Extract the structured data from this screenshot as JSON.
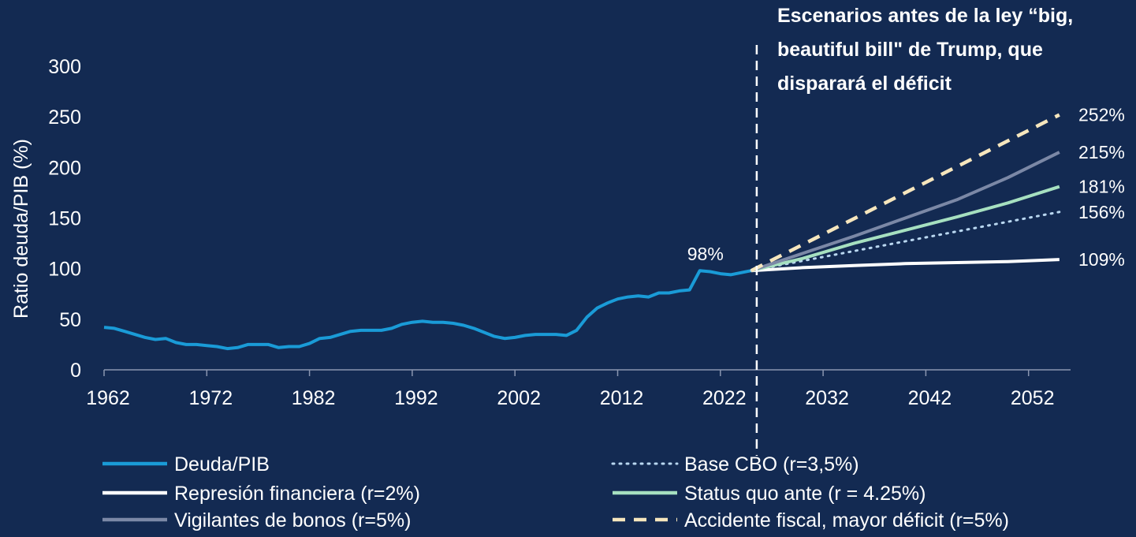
{
  "chart_data": {
    "type": "line",
    "title": "",
    "xlabel": "",
    "ylabel": "Ratio deuda/PIB (%)",
    "ylim": [
      0,
      300
    ],
    "xlim": [
      1962,
      2055
    ],
    "x_ticks": [
      1962,
      1972,
      1982,
      1992,
      2002,
      2012,
      2022,
      2032,
      2042,
      2052
    ],
    "y_ticks": [
      0,
      50,
      100,
      150,
      200,
      250,
      300
    ],
    "grid": false,
    "divider_year": 2025,
    "annotation": "Escenarios antes de la ley “big, beautiful bill\" de Trump, que disparará el déficit",
    "annotation_lines": [
      "Escenarios antes de la ley “big,",
      "beautiful bill\" de Trump, que",
      "disparará el déficit"
    ],
    "point_label": {
      "text": "98%",
      "x": 2022,
      "y": 98
    },
    "legend_position": "bottom",
    "series": [
      {
        "name": "Deuda/PIB",
        "style": "solid",
        "color": "#1a9bd7",
        "x": [
          1962,
          1963,
          1964,
          1965,
          1966,
          1967,
          1968,
          1969,
          1970,
          1971,
          1972,
          1973,
          1974,
          1975,
          1976,
          1977,
          1978,
          1979,
          1980,
          1981,
          1982,
          1983,
          1984,
          1985,
          1986,
          1987,
          1988,
          1989,
          1990,
          1991,
          1992,
          1993,
          1994,
          1995,
          1996,
          1997,
          1998,
          1999,
          2000,
          2001,
          2002,
          2003,
          2004,
          2005,
          2006,
          2007,
          2008,
          2009,
          2010,
          2011,
          2012,
          2013,
          2014,
          2015,
          2016,
          2017,
          2018,
          2019,
          2020,
          2021,
          2022,
          2023,
          2024,
          2025
        ],
        "y": [
          42,
          41,
          38,
          35,
          32,
          30,
          31,
          27,
          25,
          25,
          24,
          23,
          21,
          22,
          25,
          25,
          25,
          22,
          23,
          23,
          26,
          31,
          32,
          35,
          38,
          39,
          39,
          39,
          41,
          45,
          47,
          48,
          47,
          47,
          46,
          44,
          41,
          37,
          33,
          31,
          32,
          34,
          35,
          35,
          35,
          34,
          39,
          52,
          61,
          66,
          70,
          72,
          73,
          72,
          76,
          76,
          78,
          79,
          98,
          97,
          95,
          94,
          96,
          98
        ]
      },
      {
        "name": "Base CBO (r=3,5%)",
        "style": "dotted",
        "color": "#b9d7f0",
        "x": [
          2025,
          2055
        ],
        "y": [
          98,
          156
        ]
      },
      {
        "name": "Represión financiera (r=2%)",
        "style": "solid",
        "color": "#ffffff",
        "x": [
          2025,
          2030,
          2035,
          2040,
          2045,
          2050,
          2055
        ],
        "y": [
          98,
          101,
          103,
          105,
          106,
          107,
          109
        ]
      },
      {
        "name": "Status quo ante (r = 4.25%)",
        "style": "solid",
        "color": "#a6e0c0",
        "x": [
          2025,
          2030,
          2035,
          2040,
          2045,
          2050,
          2055
        ],
        "y": [
          98,
          110,
          125,
          138,
          151,
          165,
          181
        ]
      },
      {
        "name": "Vigilantes de bonos (r=5%)",
        "style": "solid",
        "color": "#7b88a6",
        "x": [
          2025,
          2030,
          2035,
          2040,
          2045,
          2050,
          2055
        ],
        "y": [
          98,
          115,
          132,
          150,
          168,
          190,
          215
        ]
      },
      {
        "name": "Accidente fiscal, mayor déficit (r=5%)",
        "style": "dashed",
        "color": "#f6e6bd",
        "x": [
          2025,
          2055
        ],
        "y": [
          98,
          252
        ]
      }
    ],
    "end_labels": [
      {
        "text": "252%",
        "value": 252
      },
      {
        "text": "215%",
        "value": 215
      },
      {
        "text": "181%",
        "value": 181
      },
      {
        "text": "156%",
        "value": 156
      },
      {
        "text": "109%",
        "value": 109
      }
    ],
    "legend": [
      {
        "label": "Deuda/PIB",
        "series": 0,
        "column": 0,
        "row": 0
      },
      {
        "label": "Represión financiera (r=2%)",
        "series": 2,
        "column": 0,
        "row": 1
      },
      {
        "label": "Vigilantes de bonos (r=5%)",
        "series": 4,
        "column": 0,
        "row": 2
      },
      {
        "label": "Base CBO (r=3,5%)",
        "series": 1,
        "column": 1,
        "row": 0
      },
      {
        "label": "Status quo ante (r = 4.25%)",
        "series": 3,
        "column": 1,
        "row": 1
      },
      {
        "label": "Accidente fiscal, mayor déficit (r=5%)",
        "series": 5,
        "column": 1,
        "row": 2
      }
    ]
  }
}
